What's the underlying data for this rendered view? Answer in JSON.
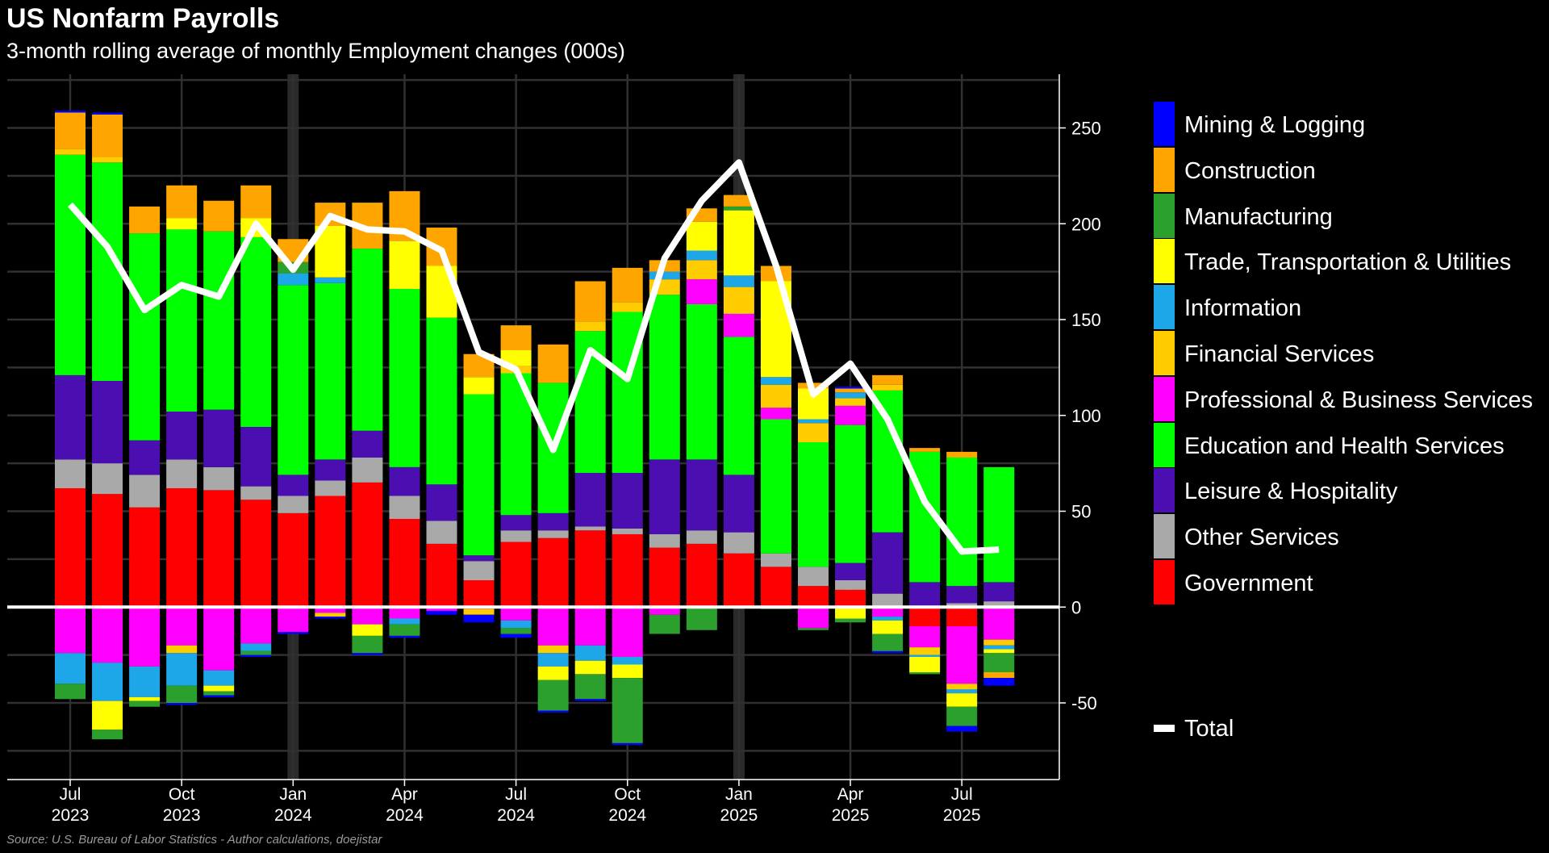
{
  "chart_data": {
    "type": "bar",
    "stacked": true,
    "title": "US Nonfarm Payrolls",
    "subtitle": "3-month rolling average of monthly Employment changes (000s)",
    "source": "Source: U.S. Bureau of Labor Statistics - Author calculations, doejistar",
    "xlabel": "",
    "ylabel": "",
    "ylim": [
      -90,
      278
    ],
    "yticks": [
      -50,
      0,
      50,
      100,
      150,
      200,
      250
    ],
    "grid": true,
    "legend_position": "right",
    "categories": [
      "2023-07",
      "2023-08",
      "2023-09",
      "2023-10",
      "2023-11",
      "2023-12",
      "2024-01",
      "2024-02",
      "2024-03",
      "2024-04",
      "2024-05",
      "2024-06",
      "2024-07",
      "2024-08",
      "2024-09",
      "2024-10",
      "2024-11",
      "2024-12",
      "2025-01",
      "2025-02",
      "2025-03",
      "2025-04",
      "2025-05",
      "2025-06",
      "2025-07",
      "2025-08"
    ],
    "x_tick_labels": [
      {
        "index": 0,
        "month": "Jul",
        "year": "2023"
      },
      {
        "index": 3,
        "month": "Oct",
        "year": "2023"
      },
      {
        "index": 6,
        "month": "Jan",
        "year": "2024"
      },
      {
        "index": 9,
        "month": "Apr",
        "year": "2024"
      },
      {
        "index": 12,
        "month": "Jul",
        "year": "2024"
      },
      {
        "index": 15,
        "month": "Oct",
        "year": "2024"
      },
      {
        "index": 18,
        "month": "Jan",
        "year": "2025"
      },
      {
        "index": 21,
        "month": "Apr",
        "year": "2025"
      },
      {
        "index": 24,
        "month": "Jul",
        "year": "2025"
      }
    ],
    "year_start_indices": [
      6,
      18
    ],
    "series": [
      {
        "name": "Government",
        "color": "#ff0000",
        "values": [
          62,
          59,
          52,
          62,
          61,
          56,
          49,
          58,
          65,
          46,
          33,
          14,
          34,
          36,
          40,
          38,
          31,
          33,
          28,
          21,
          11,
          9,
          0,
          -10,
          -10,
          0
        ]
      },
      {
        "name": "Other Services",
        "color": "#a9a9a9",
        "values": [
          15,
          16,
          17,
          15,
          12,
          7,
          9,
          8,
          13,
          12,
          12,
          10,
          6,
          4,
          2,
          3,
          7,
          7,
          11,
          7,
          10,
          5,
          7,
          0,
          2,
          3
        ]
      },
      {
        "name": "Leisure & Hospitality",
        "color": "#4b0eb0",
        "values": [
          44,
          43,
          18,
          25,
          30,
          31,
          11,
          11,
          14,
          15,
          19,
          3,
          8,
          9,
          28,
          29,
          39,
          37,
          30,
          0,
          0,
          9,
          32,
          13,
          9,
          10
        ]
      },
      {
        "name": "Education and Health Services",
        "color": "#00ff00",
        "values": [
          115,
          114,
          108,
          95,
          93,
          99,
          99,
          92,
          95,
          93,
          87,
          84,
          74,
          68,
          74,
          84,
          86,
          81,
          72,
          70,
          65,
          72,
          74,
          68,
          67,
          60
        ]
      },
      {
        "name": "Professional & Business Services",
        "color": "#ff00ff",
        "values": [
          -24,
          -29,
          -31,
          -20,
          -33,
          -19,
          -13,
          -3,
          -9,
          -6,
          -2,
          -1,
          -7,
          -20,
          -20,
          -26,
          -4,
          13,
          12,
          6,
          -11,
          10,
          -5,
          -11,
          -30,
          -17
        ]
      },
      {
        "name": "Financial Services",
        "color": "#ffcc00",
        "values": [
          3,
          3,
          0,
          -4,
          0,
          0,
          0,
          -2,
          0,
          0,
          0,
          -3,
          4,
          -4,
          5,
          5,
          8,
          10,
          14,
          12,
          10,
          4,
          3,
          -4,
          -3,
          -3
        ]
      },
      {
        "name": "Information",
        "color": "#1ea7e8",
        "values": [
          -16,
          -20,
          -16,
          -17,
          -8,
          -4,
          6,
          3,
          0,
          -3,
          0,
          0,
          -4,
          -7,
          -8,
          -4,
          4,
          5,
          6,
          4,
          2,
          3,
          -2,
          -1,
          -2,
          -2
        ]
      },
      {
        "name": "Trade, Transportation & Utilities",
        "color": "#ffff00",
        "values": [
          0,
          -15,
          -2,
          6,
          -3,
          10,
          0,
          27,
          -6,
          25,
          27,
          9,
          8,
          -7,
          -7,
          -7,
          0,
          15,
          34,
          50,
          16,
          -6,
          -7,
          -8,
          -7,
          -2
        ]
      },
      {
        "name": "Manufacturing",
        "color": "#2ca02c",
        "values": [
          -8,
          -5,
          -3,
          -9,
          -2,
          -2,
          6,
          0,
          -9,
          -6,
          0,
          0,
          -3,
          -16,
          -13,
          -34,
          -10,
          -12,
          2,
          -1,
          -1,
          -2,
          -9,
          -1,
          -10,
          -10
        ]
      },
      {
        "name": "Construction",
        "color": "#ffa500",
        "values": [
          19,
          22,
          14,
          17,
          16,
          17,
          12,
          12,
          24,
          26,
          20,
          12,
          13,
          20,
          21,
          18,
          6,
          7,
          6,
          8,
          3,
          2,
          5,
          2,
          3,
          -3
        ]
      },
      {
        "name": "Mining & Logging",
        "color": "#0000ff",
        "values": [
          1,
          1,
          0,
          -1,
          -1,
          -1,
          -1,
          -1,
          -1,
          -1,
          -2,
          -4,
          -2,
          -1,
          -1,
          -1,
          0,
          0,
          0,
          0,
          0,
          1,
          -1,
          0,
          -3,
          -4
        ]
      }
    ],
    "total": {
      "name": "Total",
      "color": "#ffffff",
      "values": [
        210,
        188,
        155,
        168,
        162,
        200,
        176,
        204,
        197,
        196,
        186,
        133,
        124,
        82,
        134,
        119,
        182,
        212,
        232,
        178,
        111,
        127,
        98,
        55,
        29,
        30
      ]
    }
  },
  "legend": {
    "items": [
      {
        "label": "Mining & Logging",
        "color": "#0000ff"
      },
      {
        "label": "Construction",
        "color": "#ffa500"
      },
      {
        "label": "Manufacturing",
        "color": "#2ca02c"
      },
      {
        "label": "Trade, Transportation & Utilities",
        "color": "#ffff00"
      },
      {
        "label": "Information",
        "color": "#1ea7e8"
      },
      {
        "label": "Financial Services",
        "color": "#ffcc00"
      },
      {
        "label": "Professional & Business Services",
        "color": "#ff00ff"
      },
      {
        "label": "Education and Health Services",
        "color": "#00ff00"
      },
      {
        "label": "Leisure & Hospitality",
        "color": "#4b0eb0"
      },
      {
        "label": "Other Services",
        "color": "#a9a9a9"
      },
      {
        "label": "Government",
        "color": "#ff0000"
      }
    ],
    "total_label": "Total"
  }
}
